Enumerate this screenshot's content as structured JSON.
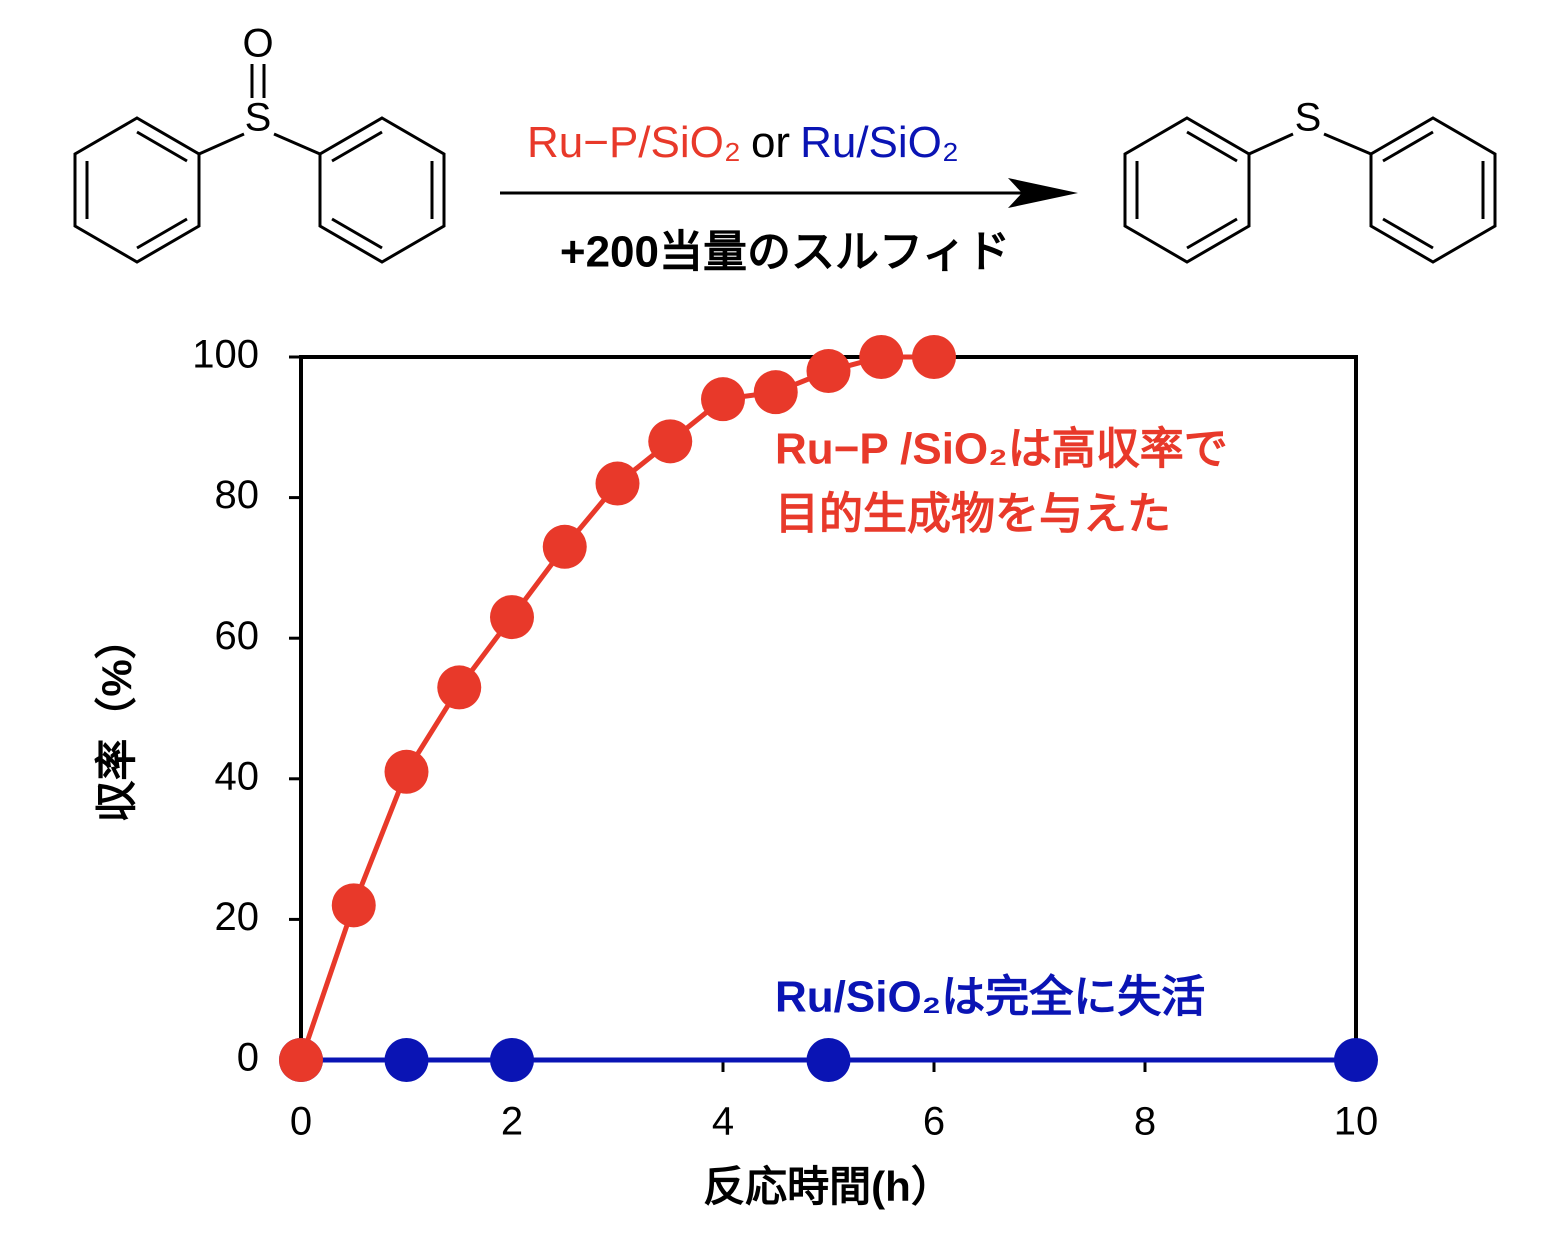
{
  "scheme": {
    "reactant_atoms": [
      "O",
      "S"
    ],
    "product_atom": "S",
    "catalysts": [
      {
        "text": "Ru−P/SiO₂",
        "color": "#e8392a"
      },
      {
        "text": "or",
        "color": "#000000"
      },
      {
        "text": "Ru/SiO₂",
        "color": "#0a14b4"
      }
    ],
    "condition": "+200当量のスルフィド"
  },
  "chart_data": {
    "type": "line",
    "xlabel": "反応時間(h）",
    "ylabel": "収率（%）",
    "xlim": [
      0,
      10
    ],
    "xticks": [
      0,
      2,
      4,
      6,
      8,
      10
    ],
    "ylim": [
      0,
      100
    ],
    "yticks": [
      0,
      20,
      40,
      60,
      80,
      100
    ],
    "series": [
      {
        "name": "Ru/SiO₂",
        "color": "#0a14b4",
        "x": [
          0,
          1,
          2,
          5,
          10
        ],
        "values": [
          0,
          0,
          0,
          0,
          0
        ]
      },
      {
        "name": "Ru−P/SiO₂",
        "color": "#e8392a",
        "x": [
          0,
          0.5,
          1,
          1.5,
          2,
          2.5,
          3,
          3.5,
          4,
          4.5,
          5,
          5.5,
          6
        ],
        "values": [
          0,
          22,
          41,
          53,
          63,
          73,
          82,
          88,
          94,
          95,
          98,
          100,
          100
        ]
      }
    ],
    "annotations": [
      {
        "lines": [
          "Ru−P /SiO₂は高収率で",
          "目的生成物を与えた"
        ],
        "color": "#e8392a"
      },
      {
        "lines": [
          "Ru/SiO₂は完全に失活"
        ],
        "color": "#0a14b4"
      }
    ]
  }
}
